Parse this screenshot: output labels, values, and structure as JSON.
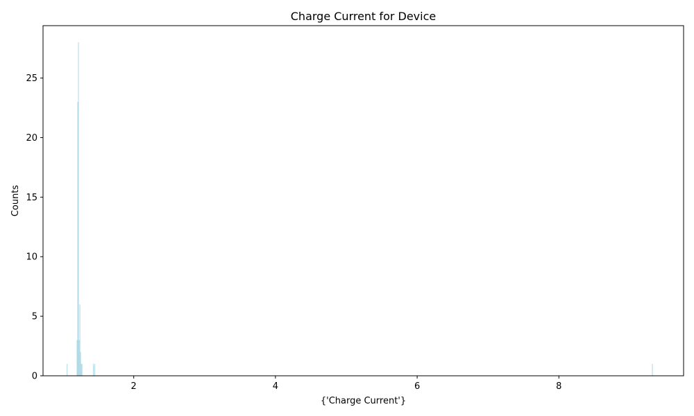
{
  "chart_data": {
    "type": "bar",
    "title": "Charge Current for Device",
    "xlabel": "{'Charge Current'}",
    "ylabel": "Counts",
    "xlim": [
      0.72,
      9.76
    ],
    "ylim": [
      0,
      29.4
    ],
    "xticks": [
      2,
      4,
      6,
      8
    ],
    "yticks": [
      0,
      5,
      10,
      15,
      20,
      25
    ],
    "bar_width": 0.008,
    "bar_color": "#add8e6",
    "grid": false,
    "legend": "none",
    "x": [
      1.06,
      1.2,
      1.21,
      1.22,
      1.23,
      1.24,
      1.25,
      1.26,
      1.27,
      1.43,
      1.45,
      9.32
    ],
    "values": [
      1,
      3,
      23,
      28,
      3,
      6,
      2,
      1,
      1,
      1,
      1,
      1
    ]
  }
}
